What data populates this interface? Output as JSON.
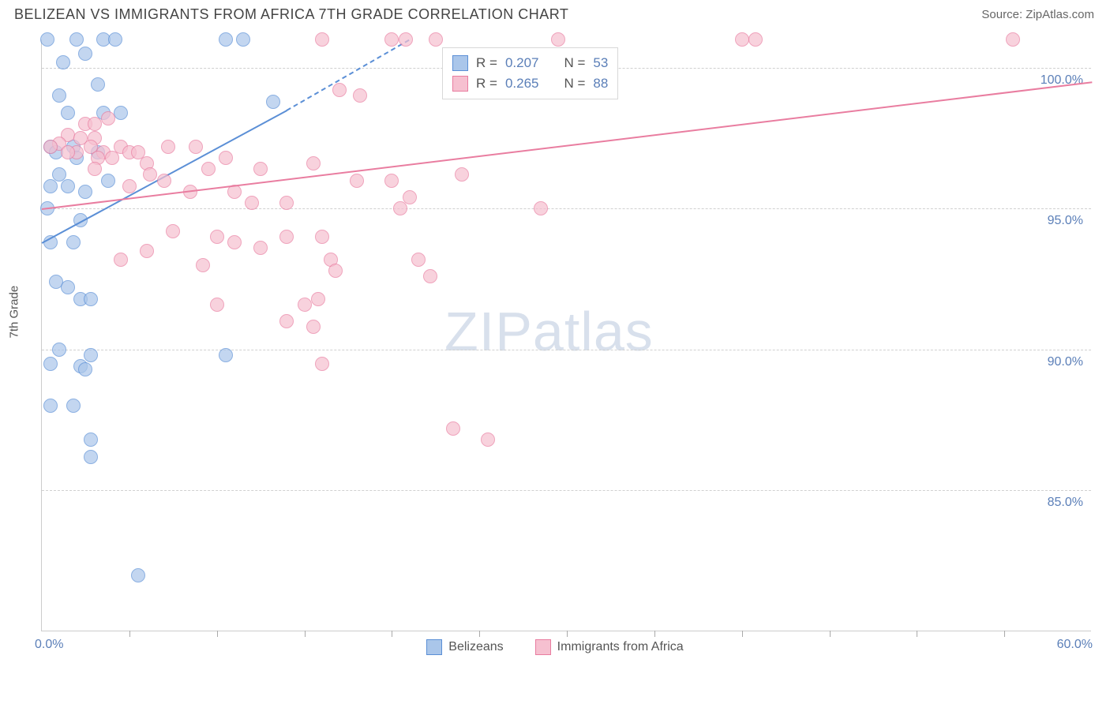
{
  "title": "BELIZEAN VS IMMIGRANTS FROM AFRICA 7TH GRADE CORRELATION CHART",
  "source_label": "Source: ",
  "source_name": "ZipAtlas.com",
  "y_axis_label": "7th Grade",
  "watermark_a": "ZIP",
  "watermark_b": "atlas",
  "chart": {
    "type": "scatter",
    "xlim": [
      0,
      60
    ],
    "ylim": [
      80,
      101
    ],
    "x_tick_step_pct": 5,
    "y_ticks": [
      85,
      90,
      95,
      100
    ],
    "y_tick_suffix": "%",
    "x_start_label": "0.0%",
    "x_end_label": "60.0%",
    "background_color": "#ffffff",
    "grid_color": "#d0d0d0",
    "point_radius": 9,
    "point_border_width": 1.5,
    "point_fill_opacity": 0.35,
    "series": [
      {
        "key": "belizeans",
        "label": "Belizeans",
        "color_border": "#5b8fd6",
        "color_fill": "#aac6ea",
        "R": "0.207",
        "N": "53",
        "trend": {
          "x1": 0,
          "y1": 93.8,
          "x2": 14,
          "y2": 98.5,
          "dash_to_x": 21,
          "dash_to_y": 101
        },
        "points": [
          [
            0.3,
            101
          ],
          [
            3.5,
            101
          ],
          [
            4.2,
            101
          ],
          [
            2.0,
            101
          ],
          [
            10.5,
            101
          ],
          [
            11.5,
            101
          ],
          [
            1.2,
            100.2
          ],
          [
            2.5,
            100.5
          ],
          [
            3.2,
            99.4
          ],
          [
            1.0,
            99.0
          ],
          [
            1.5,
            98.4
          ],
          [
            3.5,
            98.4
          ],
          [
            4.5,
            98.4
          ],
          [
            0.5,
            97.2
          ],
          [
            13.2,
            98.8
          ],
          [
            0.8,
            97.0
          ],
          [
            1.8,
            97.2
          ],
          [
            3.2,
            97.0
          ],
          [
            2.0,
            96.8
          ],
          [
            1.0,
            96.2
          ],
          [
            0.5,
            95.8
          ],
          [
            2.5,
            95.6
          ],
          [
            3.8,
            96.0
          ],
          [
            1.5,
            95.8
          ],
          [
            0.3,
            95.0
          ],
          [
            2.2,
            94.6
          ],
          [
            0.5,
            93.8
          ],
          [
            1.8,
            93.8
          ],
          [
            0.8,
            92.4
          ],
          [
            1.5,
            92.2
          ],
          [
            2.2,
            91.8
          ],
          [
            2.8,
            91.8
          ],
          [
            1.0,
            90.0
          ],
          [
            0.5,
            89.5
          ],
          [
            2.2,
            89.4
          ],
          [
            2.8,
            89.8
          ],
          [
            2.5,
            89.3
          ],
          [
            0.5,
            88.0
          ],
          [
            1.8,
            88.0
          ],
          [
            10.5,
            89.8
          ],
          [
            2.8,
            86.8
          ],
          [
            2.8,
            86.2
          ],
          [
            5.5,
            82.0
          ]
        ]
      },
      {
        "key": "africa",
        "label": "Immigrants from Africa",
        "color_border": "#e97da0",
        "color_fill": "#f6c0d0",
        "R": "0.265",
        "N": "88",
        "trend": {
          "x1": 0,
          "y1": 95.0,
          "x2": 60,
          "y2": 99.5,
          "dash_to_x": null,
          "dash_to_y": null
        },
        "points": [
          [
            16.0,
            101
          ],
          [
            20.0,
            101
          ],
          [
            20.8,
            101
          ],
          [
            22.5,
            101
          ],
          [
            29.5,
            101
          ],
          [
            40.0,
            101
          ],
          [
            40.8,
            101
          ],
          [
            55.5,
            101
          ],
          [
            17.0,
            99.2
          ],
          [
            18.2,
            99.0
          ],
          [
            2.5,
            98.0
          ],
          [
            3.0,
            98.0
          ],
          [
            3.8,
            98.2
          ],
          [
            1.5,
            97.6
          ],
          [
            2.2,
            97.5
          ],
          [
            3.0,
            97.5
          ],
          [
            1.0,
            97.3
          ],
          [
            0.5,
            97.2
          ],
          [
            2.8,
            97.2
          ],
          [
            4.5,
            97.2
          ],
          [
            2.0,
            97.0
          ],
          [
            3.5,
            97.0
          ],
          [
            1.5,
            97.0
          ],
          [
            3.2,
            96.8
          ],
          [
            4.0,
            96.8
          ],
          [
            5.0,
            97.0
          ],
          [
            5.5,
            97.0
          ],
          [
            3.0,
            96.4
          ],
          [
            6.0,
            96.6
          ],
          [
            7.2,
            97.2
          ],
          [
            8.8,
            97.2
          ],
          [
            9.5,
            96.4
          ],
          [
            6.2,
            96.2
          ],
          [
            7.0,
            96.0
          ],
          [
            5.0,
            95.8
          ],
          [
            8.5,
            95.6
          ],
          [
            10.5,
            96.8
          ],
          [
            12.5,
            96.4
          ],
          [
            11.0,
            95.6
          ],
          [
            12.0,
            95.2
          ],
          [
            15.5,
            96.6
          ],
          [
            18.0,
            96.0
          ],
          [
            20.0,
            96.0
          ],
          [
            21.0,
            95.4
          ],
          [
            14.0,
            95.2
          ],
          [
            11.0,
            93.8
          ],
          [
            12.5,
            93.6
          ],
          [
            14.0,
            94.0
          ],
          [
            16.0,
            94.0
          ],
          [
            16.5,
            93.2
          ],
          [
            16.8,
            92.8
          ],
          [
            20.5,
            95.0
          ],
          [
            21.5,
            93.2
          ],
          [
            24.0,
            96.2
          ],
          [
            22.2,
            92.6
          ],
          [
            28.5,
            95.0
          ],
          [
            7.5,
            94.2
          ],
          [
            10.0,
            94.0
          ],
          [
            6.0,
            93.5
          ],
          [
            4.5,
            93.2
          ],
          [
            9.2,
            93.0
          ],
          [
            10.0,
            91.6
          ],
          [
            15.0,
            91.6
          ],
          [
            15.8,
            91.8
          ],
          [
            14.0,
            91.0
          ],
          [
            15.5,
            90.8
          ],
          [
            16.0,
            89.5
          ],
          [
            23.5,
            87.2
          ],
          [
            25.5,
            86.8
          ]
        ]
      }
    ]
  },
  "stats_box": {
    "R_prefix": "R = ",
    "N_prefix": "N = "
  }
}
